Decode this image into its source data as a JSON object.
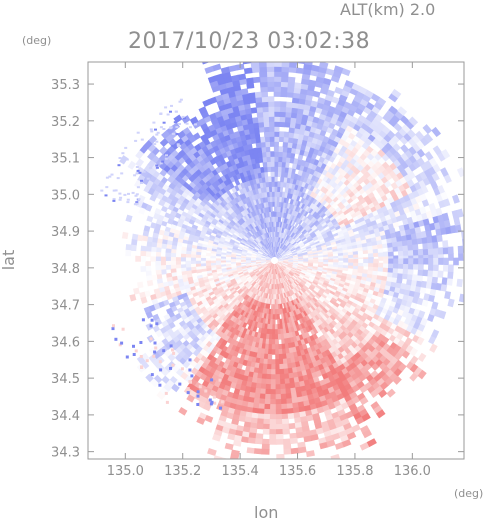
{
  "header": {
    "altitude": "ALT(km) 2.0",
    "timestamp": "2017/10/23 03:02:38"
  },
  "chart_data": {
    "type": "heatmap",
    "title": "2017/10/23 03:02:38",
    "subtitle": "ALT(km) 2.0",
    "xlabel": "lon",
    "ylabel": "lat",
    "x_unit": "(deg)",
    "y_unit": "(deg)",
    "xlim": [
      134.87,
      136.18
    ],
    "ylim": [
      34.28,
      35.36
    ],
    "x_ticks": [
      "135.0",
      "135.2",
      "135.4",
      "135.6",
      "135.8",
      "136.0"
    ],
    "y_ticks": [
      "34.3",
      "34.4",
      "34.5",
      "34.6",
      "34.7",
      "34.8",
      "34.9",
      "35.0",
      "35.1",
      "35.2",
      "35.3"
    ],
    "grid": false,
    "legend": "none",
    "colors": {
      "strong_blue": "#7c85f2",
      "light_blue": "#d0d3fb",
      "white": "#ffffff",
      "light_red": "#fbd3d3",
      "strong_red": "#f27c7c",
      "axis": "#9a9a9a"
    },
    "radar_center": {
      "lon": 135.52,
      "lat": 34.82
    },
    "regions": [
      {
        "name": "north",
        "dominant": "blue",
        "lat_range": [
          34.83,
          35.33
        ],
        "lon_range": [
          135.05,
          136.15
        ]
      },
      {
        "name": "south-center",
        "dominant": "red",
        "lat_range": [
          34.32,
          34.8
        ],
        "lon_range": [
          135.1,
          135.9
        ]
      },
      {
        "name": "north-east band",
        "dominant": "red",
        "lat_range": [
          35.0,
          35.2
        ],
        "lon_range": [
          135.75,
          136.0
        ]
      },
      {
        "name": "south-east",
        "dominant": "red",
        "lat_range": [
          34.35,
          34.48
        ],
        "lon_range": [
          135.8,
          135.95
        ]
      }
    ]
  }
}
